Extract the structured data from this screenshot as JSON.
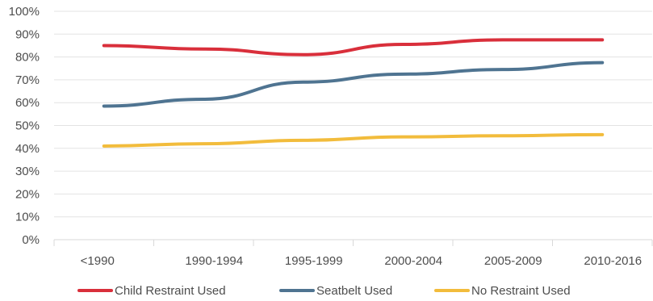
{
  "chart_data": {
    "type": "line",
    "title": "",
    "xlabel": "",
    "ylabel": "",
    "categories": [
      "<1990",
      "1990-1994",
      "1995-1999",
      "2000-2004",
      "2005-2009",
      "2010-2016"
    ],
    "ylim": [
      0,
      100
    ],
    "yticks": [
      0,
      10,
      20,
      30,
      40,
      50,
      60,
      70,
      80,
      90,
      100
    ],
    "ytick_labels": [
      "0%",
      "10%",
      "20%",
      "30%",
      "40%",
      "50%",
      "60%",
      "70%",
      "80%",
      "90%",
      "100%"
    ],
    "grid": true,
    "legend": "bottom",
    "series": [
      {
        "name": "Child Restraint Used",
        "color": "#d92f3b",
        "values": [
          85,
          83.5,
          81,
          85.5,
          87.5,
          87.5
        ]
      },
      {
        "name": "Seatbelt Used",
        "color": "#4f7491",
        "values": [
          58.5,
          61.5,
          69,
          72.5,
          74.5,
          77.5
        ]
      },
      {
        "name": "No Restraint Used",
        "color": "#f2bc3c",
        "values": [
          41,
          42,
          43.5,
          45,
          45.5,
          46
        ]
      }
    ]
  }
}
